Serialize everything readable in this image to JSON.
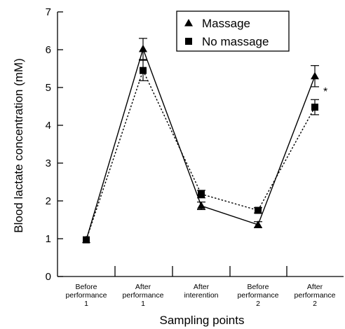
{
  "chart_data": {
    "type": "line",
    "categories": [
      [
        "Before",
        "performance",
        "1"
      ],
      [
        "After",
        "performance",
        "1"
      ],
      [
        "After",
        "interention"
      ],
      [
        "Before",
        "performance",
        "2"
      ],
      [
        "After",
        "performance",
        "2"
      ]
    ],
    "xlabel": "Sampling points",
    "ylabel": "Blood lactate concentration (mM)",
    "ylim": [
      0,
      7
    ],
    "yticks": [
      0,
      1,
      2,
      3,
      4,
      5,
      6,
      7
    ],
    "grid": false,
    "legend_position": "top-right",
    "series": [
      {
        "name": "Massage",
        "marker": "triangle",
        "line_style": "solid",
        "values": [
          0.97,
          6.02,
          1.87,
          1.37,
          5.3
        ],
        "errors": [
          0,
          0.28,
          0.1,
          0.08,
          0.28
        ]
      },
      {
        "name": "No massage",
        "marker": "square",
        "line_style": "dotted",
        "values": [
          0.97,
          5.45,
          2.18,
          1.75,
          4.48
        ],
        "errors": [
          0,
          0.27,
          0.1,
          0.07,
          0.2
        ]
      }
    ],
    "annotations": [
      {
        "text": "*",
        "category_index": 4,
        "y": 5.0
      }
    ]
  }
}
